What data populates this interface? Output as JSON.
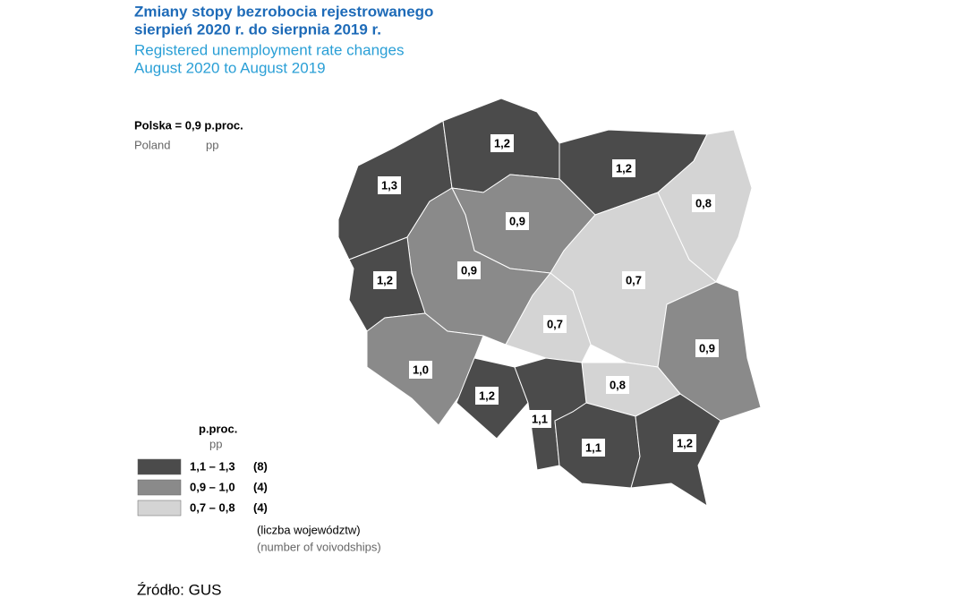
{
  "header": {
    "title": [
      "Zmiany stopy bezrobocia rejestrowanego",
      "sierpień 2020 r. do sierpnia 2019 r."
    ],
    "subtitle": [
      "Registered unemployment rate changes",
      "August 2020 to August 2019"
    ]
  },
  "national": {
    "label": "Polska = 0,9 p.proc.",
    "name_en": "Poland",
    "unit_en": "pp"
  },
  "regions": [
    {
      "label": "1,3",
      "color": "#4b4b4b"
    },
    {
      "label": "1,2",
      "color": "#4b4b4b"
    },
    {
      "label": "1,2",
      "color": "#4b4b4b"
    },
    {
      "label": "0,8",
      "color": "#d4d4d4"
    },
    {
      "label": "0,9",
      "color": "#8a8a8a"
    },
    {
      "label": "0,9",
      "color": "#8a8a8a"
    },
    {
      "label": "1,2",
      "color": "#4b4b4b"
    },
    {
      "label": "0,7",
      "color": "#d4d4d4"
    },
    {
      "label": "0,7",
      "color": "#d4d4d4"
    },
    {
      "label": "0,9",
      "color": "#8a8a8a"
    },
    {
      "label": "1,0",
      "color": "#8a8a8a"
    },
    {
      "label": "1,2",
      "color": "#4b4b4b"
    },
    {
      "label": "0,8",
      "color": "#d4d4d4"
    },
    {
      "label": "1,1",
      "color": "#4b4b4b"
    },
    {
      "label": "1,1",
      "color": "#4b4b4b"
    },
    {
      "label": "1,2",
      "color": "#4b4b4b"
    }
  ],
  "legend": {
    "title": "p.proc.",
    "subtitle": "pp",
    "items": [
      {
        "range": "1,1 – 1,3",
        "count": "(8)",
        "color": "#4b4b4b"
      },
      {
        "range": "0,9 – 1,0",
        "count": "(4)",
        "color": "#8a8a8a"
      },
      {
        "range": "0,7 – 0,8",
        "count": "(4)",
        "color": "#d4d4d4"
      }
    ],
    "note": "(liczba województw)",
    "note_en": "(number of voivodships)"
  },
  "source": "Źródło: GUS"
}
